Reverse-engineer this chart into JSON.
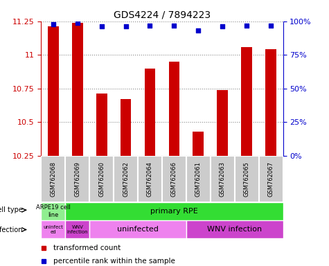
{
  "title": "GDS4224 / 7894223",
  "samples": [
    "GSM762068",
    "GSM762069",
    "GSM762060",
    "GSM762062",
    "GSM762064",
    "GSM762066",
    "GSM762061",
    "GSM762063",
    "GSM762065",
    "GSM762067"
  ],
  "transformed_counts": [
    11.21,
    11.24,
    10.71,
    10.67,
    10.9,
    10.95,
    10.43,
    10.74,
    11.06,
    11.04
  ],
  "percentile_ranks": [
    98,
    99,
    96,
    96,
    97,
    97,
    93,
    96,
    97,
    97
  ],
  "ylim": [
    10.25,
    11.25
  ],
  "yticks": [
    10.25,
    10.5,
    10.75,
    11.0,
    11.25
  ],
  "ytick_labels": [
    "10.25",
    "10.5",
    "10.75",
    "11",
    "11.25"
  ],
  "y2lim": [
    0,
    100
  ],
  "y2ticks": [
    0,
    25,
    50,
    75,
    100
  ],
  "y2tick_labels": [
    "0%",
    "25%",
    "50%",
    "75%",
    "100%"
  ],
  "bar_color": "#cc0000",
  "dot_color": "#0000cc",
  "bar_width": 0.45,
  "legend_items": [
    {
      "label": "transformed count",
      "color": "#cc0000"
    },
    {
      "label": "percentile rank within the sample",
      "color": "#0000cc"
    }
  ],
  "background_color": "#ffffff",
  "tick_color_left": "#cc0000",
  "tick_color_right": "#0000cc",
  "sample_area_color": "#cccccc",
  "cell_type_green_light": "#90ee90",
  "cell_type_green": "#33dd33",
  "infection_violet_light": "#ee82ee",
  "infection_violet_dark": "#cc44cc",
  "fig_width": 4.75,
  "fig_height": 3.84,
  "dpi": 100
}
